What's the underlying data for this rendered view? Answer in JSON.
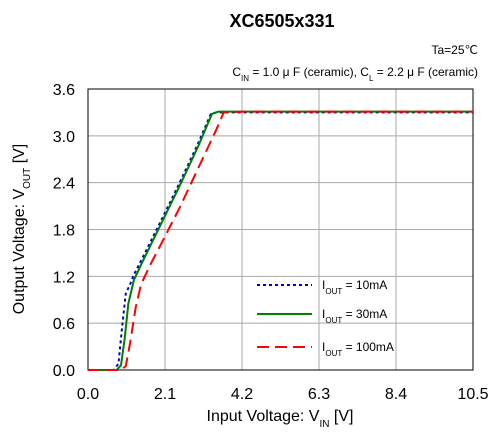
{
  "chart_data": {
    "type": "line",
    "title": "XC6505x331",
    "annotation_ta": "Ta=25℃",
    "annotation_caps": "CIN = 1.0 μ F (ceramic), CL = 2.2 μ F (ceramic)",
    "xlabel": "Input Voltage: VIN [V]",
    "ylabel": "Output Voltage: VOUT [V]",
    "xlim": [
      0,
      10.5
    ],
    "ylim": [
      0,
      3.6
    ],
    "x_ticks": [
      0.0,
      2.1,
      4.2,
      6.3,
      8.4,
      10.5
    ],
    "y_ticks": [
      0.0,
      0.6,
      1.2,
      1.8,
      2.4,
      3.0,
      3.6
    ],
    "x_tick_labels": [
      "0.0",
      "2.1",
      "4.2",
      "6.3",
      "8.4",
      "10.5"
    ],
    "y_tick_labels": [
      "0.0",
      "0.6",
      "1.2",
      "1.8",
      "2.4",
      "3.0",
      "3.6"
    ],
    "grid": true,
    "legend_position": "bottom-right",
    "series": [
      {
        "name": "IOUT = 10mA",
        "color": "#0000CC",
        "dash": "dotted",
        "x": [
          0.0,
          0.7,
          0.83,
          0.93,
          1.03,
          1.15,
          1.25,
          1.5,
          2.0,
          2.5,
          3.0,
          3.35,
          3.5,
          4.0,
          5.0,
          6.3,
          7.5,
          8.4,
          9.5,
          10.5
        ],
        "y": [
          0.0,
          0.0,
          0.08,
          0.55,
          0.98,
          1.1,
          1.22,
          1.45,
          1.92,
          2.4,
          2.9,
          3.28,
          3.3,
          3.3,
          3.3,
          3.3,
          3.3,
          3.3,
          3.3,
          3.3
        ]
      },
      {
        "name": "IOUT = 30mA",
        "color": "#008000",
        "dash": "solid",
        "x": [
          0.0,
          0.78,
          0.9,
          1.0,
          1.1,
          1.25,
          1.5,
          2.0,
          2.5,
          3.0,
          3.38,
          3.55,
          4.0,
          5.0,
          6.3,
          7.5,
          8.4,
          9.5,
          10.5
        ],
        "y": [
          0.0,
          0.0,
          0.06,
          0.4,
          0.85,
          1.15,
          1.4,
          1.88,
          2.36,
          2.86,
          3.28,
          3.31,
          3.31,
          3.31,
          3.31,
          3.31,
          3.31,
          3.31,
          3.31
        ]
      },
      {
        "name": "IOUT = 100mA",
        "color": "#FF0000",
        "dash": "dashed",
        "x": [
          0.0,
          0.9,
          1.03,
          1.15,
          1.3,
          1.45,
          1.7,
          2.0,
          2.5,
          3.0,
          3.5,
          3.7,
          4.2,
          5.0,
          6.3,
          7.5,
          8.4,
          9.5,
          10.5
        ],
        "y": [
          0.0,
          0.0,
          0.05,
          0.35,
          0.8,
          1.1,
          1.35,
          1.62,
          2.08,
          2.58,
          3.08,
          3.3,
          3.31,
          3.31,
          3.31,
          3.31,
          3.31,
          3.31,
          3.31
        ]
      }
    ]
  }
}
